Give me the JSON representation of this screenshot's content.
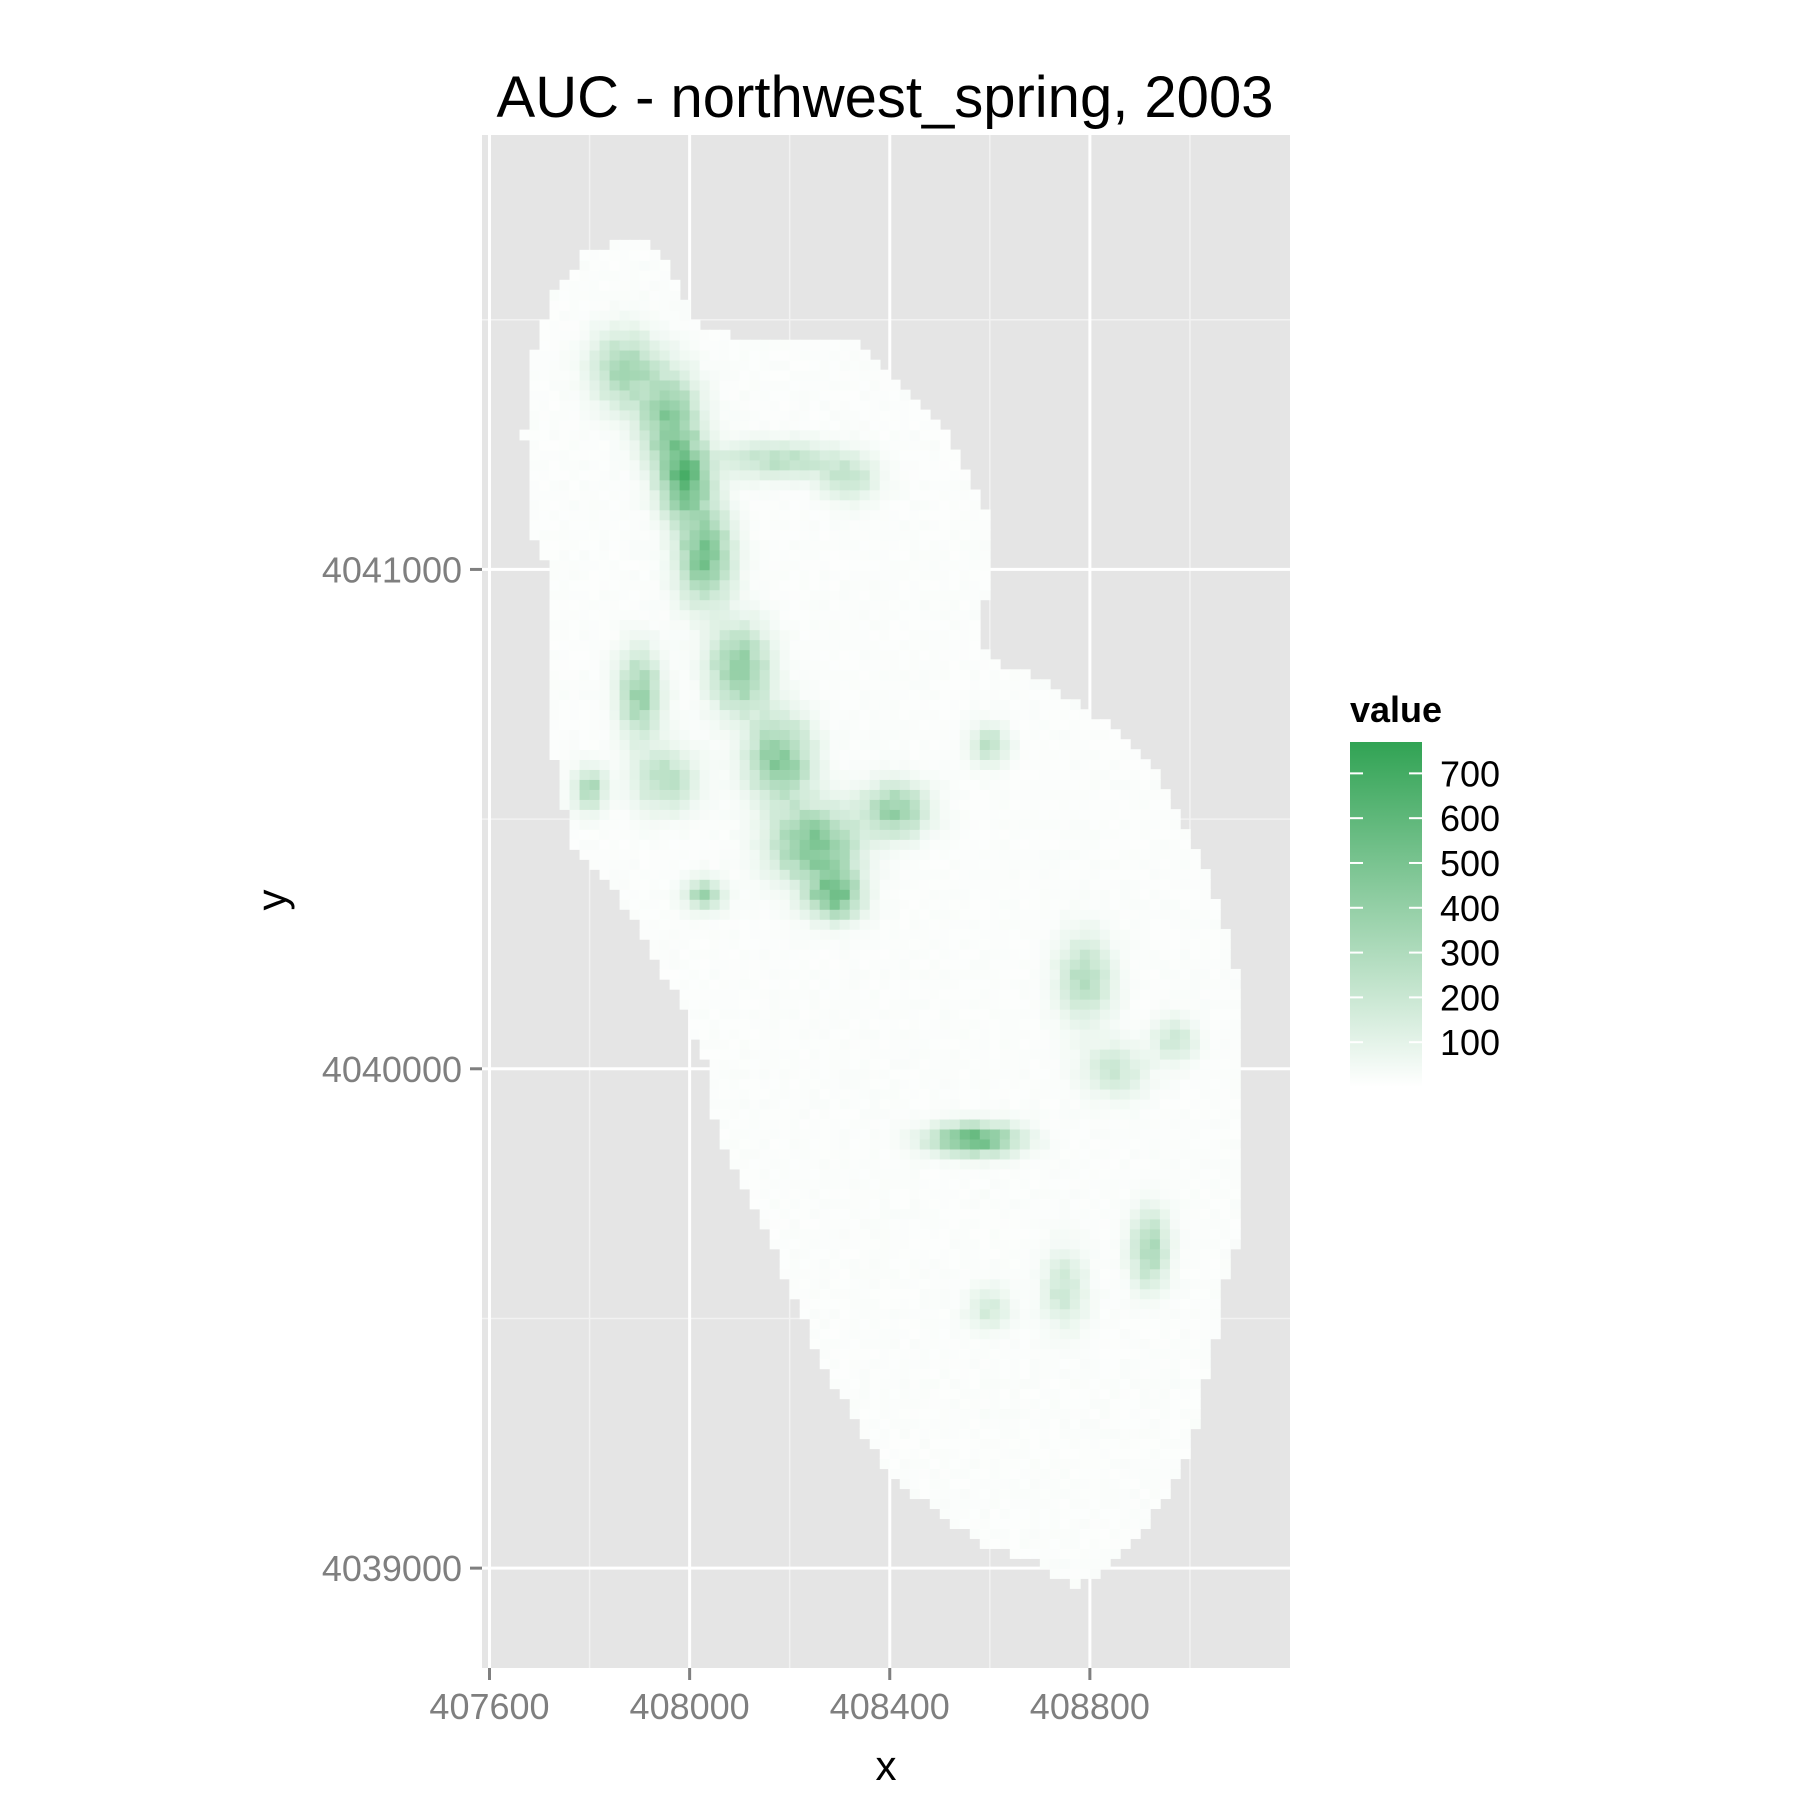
{
  "chart_data": {
    "type": "heatmap",
    "title": "AUC - northwest_spring, 2003",
    "xlabel": "x",
    "ylabel": "y",
    "x_ticks": [
      407600,
      408000,
      408400,
      408800
    ],
    "y_ticks": [
      4039000,
      4040000,
      4041000
    ],
    "xlim": [
      407585,
      409200
    ],
    "ylim": [
      4038800,
      4041870
    ],
    "grid": true,
    "legend": {
      "title": "value",
      "position": "right",
      "breaks": [
        100,
        200,
        300,
        400,
        500,
        600,
        700
      ],
      "range": [
        0,
        770
      ],
      "color_low": "#ffffff",
      "color_high": "#31a354"
    },
    "cell_size": 20,
    "study_area_outline": [
      [
        407850,
        4041650
      ],
      [
        407910,
        4041665
      ],
      [
        407945,
        4041630
      ],
      [
        407975,
        4041565
      ],
      [
        408020,
        4041490
      ],
      [
        408110,
        4041460
      ],
      [
        408330,
        4041460
      ],
      [
        408430,
        4041370
      ],
      [
        408530,
        4041250
      ],
      [
        408590,
        4041120
      ],
      [
        408610,
        4041000
      ],
      [
        408570,
        4040880
      ],
      [
        408600,
        4040820
      ],
      [
        408700,
        4040780
      ],
      [
        408840,
        4040690
      ],
      [
        408930,
        4040600
      ],
      [
        409010,
        4040440
      ],
      [
        409060,
        4040320
      ],
      [
        409100,
        4040150
      ],
      [
        409110,
        4039950
      ],
      [
        409110,
        4039700
      ],
      [
        409060,
        4039560
      ],
      [
        409050,
        4039450
      ],
      [
        409020,
        4039330
      ],
      [
        409000,
        4039240
      ],
      [
        408960,
        4039160
      ],
      [
        408900,
        4039060
      ],
      [
        408830,
        4038990
      ],
      [
        408770,
        4038960
      ],
      [
        408700,
        4039010
      ],
      [
        408600,
        4039040
      ],
      [
        408500,
        4039110
      ],
      [
        408400,
        4039180
      ],
      [
        408330,
        4039300
      ],
      [
        408260,
        4039420
      ],
      [
        408150,
        4039680
      ],
      [
        408090,
        4039800
      ],
      [
        408050,
        4039900
      ],
      [
        408030,
        4040020
      ],
      [
        407990,
        4040120
      ],
      [
        407940,
        4040200
      ],
      [
        407880,
        4040310
      ],
      [
        407820,
        4040400
      ],
      [
        407760,
        4040460
      ],
      [
        407730,
        4040630
      ],
      [
        407720,
        4040800
      ],
      [
        407720,
        4040990
      ],
      [
        407680,
        4041080
      ],
      [
        407670,
        4041270
      ],
      [
        407680,
        4041420
      ],
      [
        407730,
        4041560
      ],
      [
        407790,
        4041630
      ]
    ],
    "hotspots": [
      {
        "x": 407870,
        "y": 4041400,
        "value": 330,
        "rx": 60,
        "ry": 70
      },
      {
        "x": 407960,
        "y": 4041300,
        "value": 420,
        "rx": 55,
        "ry": 90
      },
      {
        "x": 407990,
        "y": 4041180,
        "value": 560,
        "rx": 45,
        "ry": 70
      },
      {
        "x": 408030,
        "y": 4041030,
        "value": 470,
        "rx": 50,
        "ry": 90
      },
      {
        "x": 408180,
        "y": 4041220,
        "value": 240,
        "rx": 120,
        "ry": 35
      },
      {
        "x": 408320,
        "y": 4041180,
        "value": 200,
        "rx": 50,
        "ry": 40
      },
      {
        "x": 408100,
        "y": 4040800,
        "value": 420,
        "rx": 55,
        "ry": 80
      },
      {
        "x": 408180,
        "y": 4040620,
        "value": 430,
        "rx": 60,
        "ry": 80
      },
      {
        "x": 408250,
        "y": 4040450,
        "value": 480,
        "rx": 80,
        "ry": 70
      },
      {
        "x": 408290,
        "y": 4040350,
        "value": 500,
        "rx": 50,
        "ry": 45
      },
      {
        "x": 408410,
        "y": 4040520,
        "value": 380,
        "rx": 60,
        "ry": 50
      },
      {
        "x": 407900,
        "y": 4040750,
        "value": 360,
        "rx": 40,
        "ry": 80
      },
      {
        "x": 407950,
        "y": 4040580,
        "value": 250,
        "rx": 60,
        "ry": 60
      },
      {
        "x": 407800,
        "y": 4040560,
        "value": 300,
        "rx": 30,
        "ry": 40
      },
      {
        "x": 408030,
        "y": 4040350,
        "value": 330,
        "rx": 35,
        "ry": 30
      },
      {
        "x": 408600,
        "y": 4040650,
        "value": 230,
        "rx": 35,
        "ry": 35
      },
      {
        "x": 408790,
        "y": 4040180,
        "value": 260,
        "rx": 50,
        "ry": 80
      },
      {
        "x": 408850,
        "y": 4040000,
        "value": 180,
        "rx": 60,
        "ry": 50
      },
      {
        "x": 408970,
        "y": 4040060,
        "value": 180,
        "rx": 40,
        "ry": 40
      },
      {
        "x": 408570,
        "y": 4039860,
        "value": 600,
        "rx": 80,
        "ry": 28
      },
      {
        "x": 408920,
        "y": 4039640,
        "value": 320,
        "rx": 35,
        "ry": 70
      },
      {
        "x": 408750,
        "y": 4039560,
        "value": 180,
        "rx": 40,
        "ry": 70
      },
      {
        "x": 408600,
        "y": 4039520,
        "value": 150,
        "rx": 40,
        "ry": 40
      }
    ]
  }
}
